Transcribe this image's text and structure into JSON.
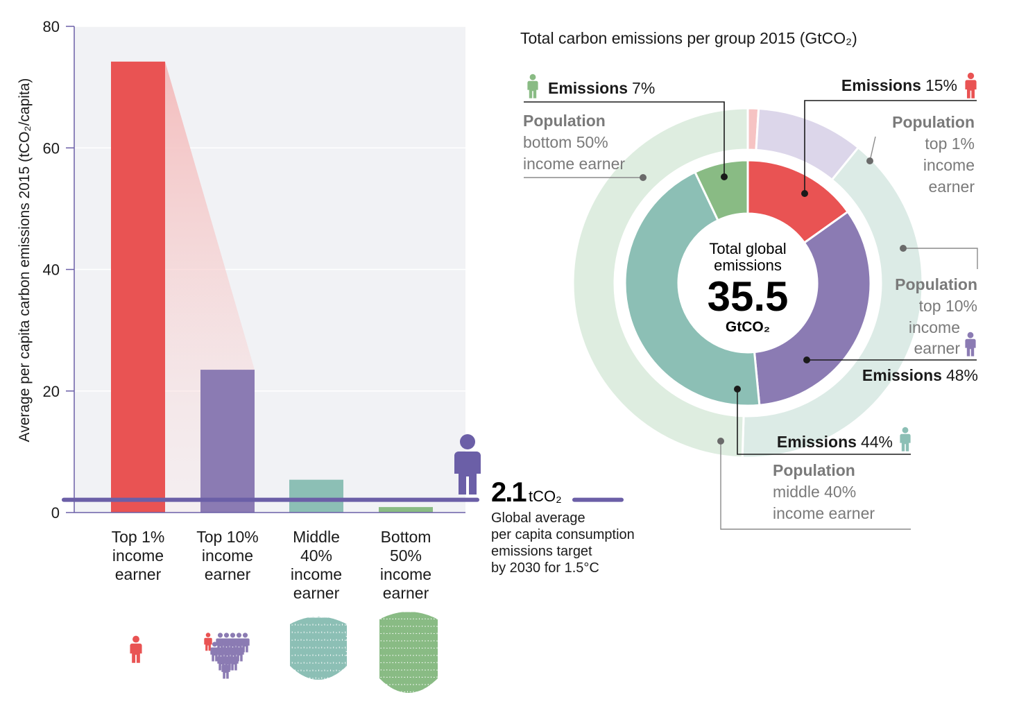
{
  "colors": {
    "top1": "#e95353",
    "top1_light": "#f6c3c3",
    "top10": "#8b7bb3",
    "top10_light": "#dcd6ea",
    "middle40": "#8cbfb5",
    "middle40_light": "#dcebe6",
    "bottom50": "#89bb84",
    "bottom50_light": "#deede0",
    "target_line": "#6b5fa7",
    "plot_bg": "#f1f2f5",
    "gray_text": "#7a7a7a"
  },
  "chart_data": [
    {
      "type": "bar",
      "title": "",
      "ylabel": "Average per capita carbon emissions 2015 (tCO₂/capita)",
      "ylim": [
        0,
        80
      ],
      "yticks": [
        "0",
        "20",
        "40",
        "60",
        "80"
      ],
      "ytick_values": [
        0,
        20,
        40,
        60,
        80
      ],
      "grid": true,
      "categories": [
        [
          "Top 1%",
          "income",
          "earner"
        ],
        [
          "Top 10%",
          "income",
          "earner"
        ],
        [
          "Middle",
          "40%",
          "income",
          "earner"
        ],
        [
          "Bottom",
          "50%",
          "income",
          "earner"
        ]
      ],
      "values": [
        74.2,
        23.5,
        5.4,
        0.9
      ],
      "bar_colors": [
        "top1",
        "top10",
        "middle40",
        "bottom50"
      ],
      "reference_line": {
        "value": 2.1,
        "value_text": "2.1",
        "unit_text": "tCO₂",
        "note": [
          "Global average",
          "per capita consumption",
          "emissions target",
          "by 2030 for 1.5°C"
        ]
      }
    },
    {
      "type": "pie",
      "title": "Total carbon emissions per group 2015 (GtCO₂)",
      "center_label": [
        "Total global",
        "emissions"
      ],
      "center_value": "35.5",
      "center_unit": "GtCO₂",
      "inner_ring": {
        "name": "Emissions",
        "slices": [
          {
            "group": "top1",
            "value": 15
          },
          {
            "group": "top10",
            "value": 33
          },
          {
            "group": "middle40",
            "value": 44
          },
          {
            "group": "bottom50",
            "value": 7
          }
        ]
      },
      "outer_ring": {
        "name": "Population",
        "slices": [
          {
            "group": "top1",
            "value": 1
          },
          {
            "group": "top10",
            "value": 10
          },
          {
            "group": "middle40",
            "value": 40
          },
          {
            "group": "bottom50",
            "value": 50
          }
        ]
      },
      "annotations": {
        "emissions_bottom50": {
          "label": "Emissions",
          "value": "7%"
        },
        "emissions_top1": {
          "label": "Emissions",
          "value": "15%"
        },
        "emissions_top10": {
          "label": "Emissions",
          "value": "48%"
        },
        "emissions_middle40": {
          "label": "Emissions",
          "value": "44%"
        },
        "population_bottom50": {
          "label": "Population",
          "lines": [
            "bottom 50%",
            "income earner"
          ]
        },
        "population_top1": {
          "label": "Population",
          "lines": [
            "top 1%",
            "income",
            "earner"
          ]
        },
        "population_top10": {
          "label": "Population",
          "lines": [
            "top 10%",
            "income",
            "earner"
          ]
        },
        "population_middle40": {
          "label": "Population",
          "lines": [
            "middle 40%",
            "income earner"
          ]
        }
      }
    }
  ],
  "icons": {
    "group_icons": [
      "person-icon",
      "people-group-icon",
      "crowd-icon",
      "large-crowd-icon"
    ],
    "target_icon": "person-icon"
  }
}
